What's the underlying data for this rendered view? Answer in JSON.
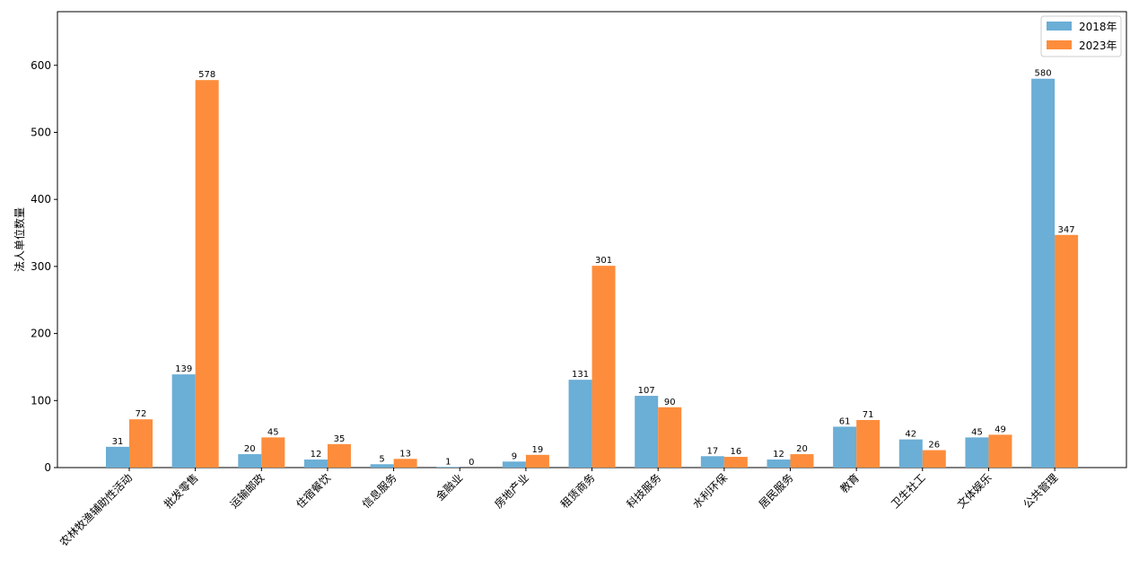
{
  "chart_data": {
    "type": "bar",
    "title": "",
    "xlabel": "",
    "ylabel": "法人单位数量",
    "ylim": [
      0,
      680
    ],
    "yticks": [
      0,
      100,
      200,
      300,
      400,
      500,
      600
    ],
    "grid": false,
    "legend_position": "top-right",
    "categories": [
      "农林牧渔辅助性活动",
      "批发零售",
      "运输邮政",
      "住宿餐饮",
      "信息服务",
      "金融业",
      "房地产业",
      "租赁商务",
      "科技服务",
      "水利环保",
      "居民服务",
      "教育",
      "卫生社工",
      "文体娱乐",
      "公共管理"
    ],
    "series": [
      {
        "name": "2018年",
        "color": "#6baed6",
        "values": [
          31,
          139,
          20,
          12,
          5,
          1,
          9,
          131,
          107,
          17,
          12,
          61,
          42,
          45,
          580
        ]
      },
      {
        "name": "2023年",
        "color": "#fd8d3c",
        "values": [
          72,
          578,
          45,
          35,
          13,
          0,
          19,
          301,
          90,
          16,
          20,
          71,
          26,
          49,
          347
        ]
      }
    ]
  }
}
